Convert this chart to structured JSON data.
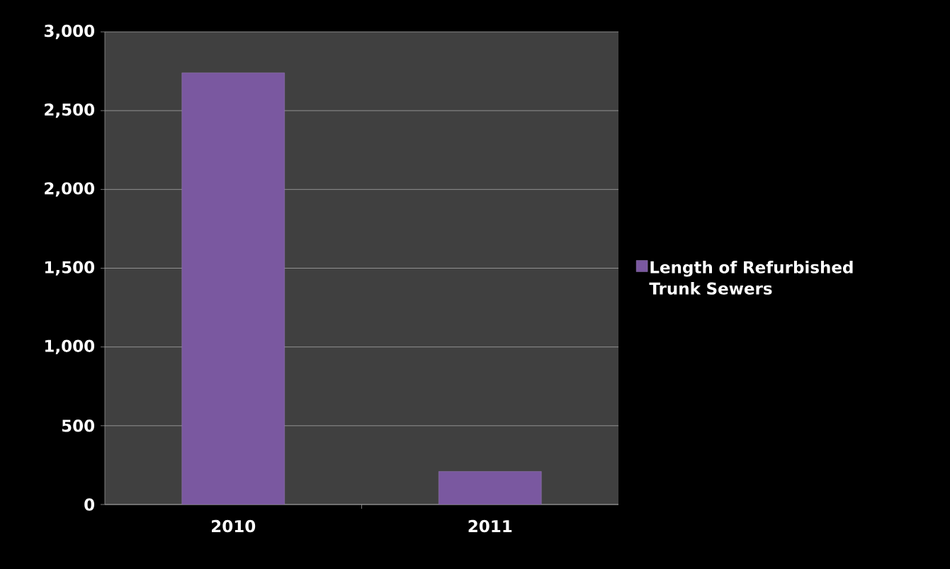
{
  "chart_data": {
    "type": "bar",
    "categories": [
      "2010",
      "2011"
    ],
    "series": [
      {
        "name": "Length of Refurbished Trunk Sewers",
        "color": "#7a58a0",
        "values": [
          2740,
          210
        ]
      }
    ],
    "ylim": [
      0,
      3000
    ],
    "yticks": [
      {
        "value": 0,
        "label": "0"
      },
      {
        "value": 500,
        "label": "500"
      },
      {
        "value": 1000,
        "label": "1,000"
      },
      {
        "value": 1500,
        "label": "1,500"
      },
      {
        "value": 2000,
        "label": "2,000"
      },
      {
        "value": 2500,
        "label": "2,500"
      },
      {
        "value": 3000,
        "label": "3,000"
      }
    ],
    "grid": "y",
    "legend": "right"
  }
}
